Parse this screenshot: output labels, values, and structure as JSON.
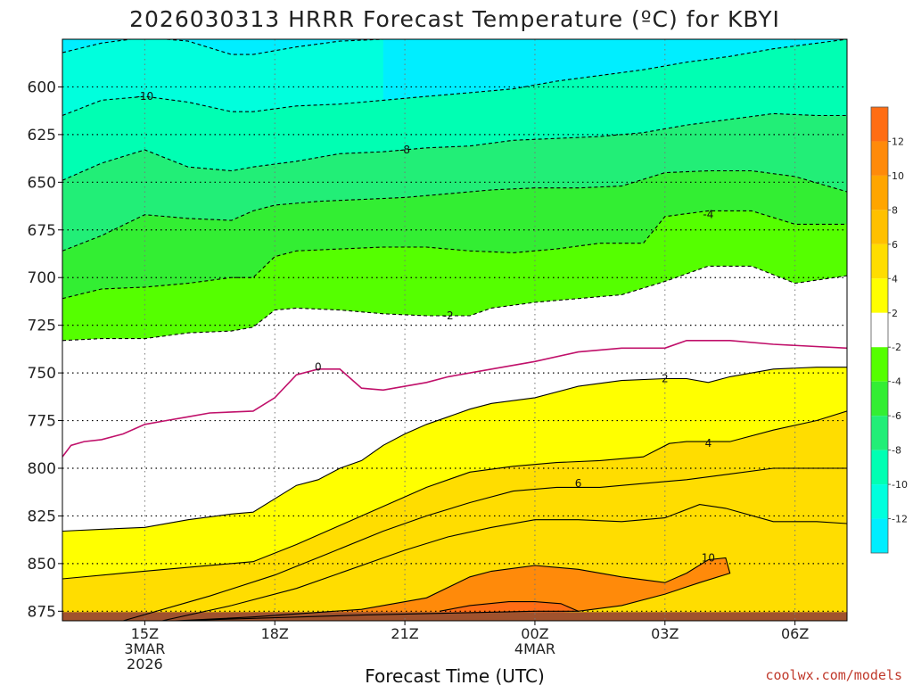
{
  "chart_data": {
    "type": "contour",
    "title": "2026030313 HRRR Forecast Temperature (ºC) for KBYI",
    "xlabel": "Forecast Time (UTC)",
    "ylabel": "",
    "credit": "coolwx.com/models",
    "x_unit": "hours after 2026030313 UTC",
    "xlim": [
      13.1,
      31.2
    ],
    "ylim": [
      880,
      575
    ],
    "x_ticks": [
      {
        "x": 15,
        "lines": [
          "15Z",
          "3MAR",
          "2026"
        ]
      },
      {
        "x": 18,
        "lines": [
          "18Z"
        ]
      },
      {
        "x": 21,
        "lines": [
          "21Z"
        ]
      },
      {
        "x": 24,
        "lines": [
          "00Z",
          "4MAR"
        ]
      },
      {
        "x": 27,
        "lines": [
          "03Z"
        ]
      },
      {
        "x": 30,
        "lines": [
          "06Z"
        ]
      }
    ],
    "y_ticks": [
      600,
      625,
      650,
      675,
      700,
      725,
      750,
      775,
      800,
      825,
      850,
      875
    ],
    "grid": true,
    "surface_pressure": 875,
    "colorbar": {
      "ticks": [
        "12",
        "10",
        "8",
        "6",
        "4",
        "2",
        "-2",
        "-4",
        "-6",
        "-8",
        "-10",
        "-12"
      ],
      "bands": [
        {
          "lo": 12,
          "hi": 14,
          "color": "#FF6D14"
        },
        {
          "lo": 10,
          "hi": 12,
          "color": "#FF8A0A"
        },
        {
          "lo": 8,
          "hi": 10,
          "color": "#FFA500"
        },
        {
          "lo": 6,
          "hi": 8,
          "color": "#FFC000"
        },
        {
          "lo": 4,
          "hi": 6,
          "color": "#FFDD00"
        },
        {
          "lo": 2,
          "hi": 4,
          "color": "#FFFF00"
        },
        {
          "lo": -2,
          "hi": 2,
          "color": "#FFFFFF"
        },
        {
          "lo": -4,
          "hi": -2,
          "color": "#55FF00"
        },
        {
          "lo": -6,
          "hi": -4,
          "color": "#33EE33"
        },
        {
          "lo": -8,
          "hi": -6,
          "color": "#22EE77"
        },
        {
          "lo": -10,
          "hi": -8,
          "color": "#00FFB3"
        },
        {
          "lo": -12,
          "hi": -10,
          "color": "#00FFDD"
        },
        {
          "lo": -14,
          "hi": -12,
          "color": "#00EEFF"
        }
      ]
    },
    "contours": [
      {
        "temp": 12,
        "label": "",
        "points": [
          [
            21.8,
            875
          ],
          [
            22.5,
            872
          ],
          [
            23.4,
            870
          ],
          [
            24,
            870
          ],
          [
            24.6,
            871
          ],
          [
            25,
            875
          ]
        ]
      },
      {
        "temp": 10,
        "label": "10",
        "label_at": [
          28.0,
          847
        ],
        "points": [
          [
            15.7,
            880
          ],
          [
            17.5,
            878
          ],
          [
            20,
            874
          ],
          [
            21.5,
            868
          ],
          [
            22.5,
            857
          ],
          [
            23,
            854
          ],
          [
            24,
            851
          ],
          [
            25,
            853
          ],
          [
            26,
            857
          ],
          [
            27,
            860
          ],
          [
            27.5,
            855
          ],
          [
            28,
            848
          ],
          [
            28.4,
            847
          ],
          [
            28.5,
            855
          ],
          [
            27.8,
            860
          ],
          [
            27,
            866
          ],
          [
            26,
            872
          ],
          [
            25,
            875
          ],
          [
            24,
            875
          ],
          [
            20,
            877
          ],
          [
            15.7,
            880
          ]
        ]
      },
      {
        "temp": 8,
        "label": "",
        "points": [
          [
            15.4,
            880
          ],
          [
            17,
            872
          ],
          [
            18.5,
            863
          ],
          [
            20,
            851
          ],
          [
            21,
            843
          ],
          [
            22,
            836
          ],
          [
            23,
            831
          ],
          [
            24,
            827
          ],
          [
            25,
            827
          ],
          [
            26,
            828
          ],
          [
            27,
            826
          ],
          [
            27.8,
            819
          ],
          [
            28.4,
            821
          ],
          [
            29.5,
            828
          ],
          [
            30.5,
            828
          ],
          [
            31.2,
            829
          ]
        ]
      },
      {
        "temp": 6,
        "label": "6",
        "label_at": [
          25,
          808
        ],
        "points": [
          [
            14.5,
            880
          ],
          [
            16.5,
            867
          ],
          [
            18,
            856
          ],
          [
            19.2,
            845
          ],
          [
            20.5,
            833
          ],
          [
            21.5,
            825
          ],
          [
            22.5,
            818
          ],
          [
            23.5,
            812
          ],
          [
            24.5,
            810
          ],
          [
            25.5,
            810
          ],
          [
            26.5,
            808
          ],
          [
            27.5,
            806
          ],
          [
            28.5,
            803
          ],
          [
            29.5,
            800
          ],
          [
            31.2,
            800
          ]
        ]
      },
      {
        "temp": 4,
        "label": "4",
        "label_at": [
          28.0,
          787
        ],
        "points": [
          [
            13.1,
            858
          ],
          [
            14.5,
            855
          ],
          [
            16,
            852
          ],
          [
            17.5,
            849
          ],
          [
            18.5,
            840
          ],
          [
            19.5,
            830
          ],
          [
            20.5,
            820
          ],
          [
            21.5,
            810
          ],
          [
            22.5,
            802
          ],
          [
            23.5,
            799
          ],
          [
            24.5,
            797
          ],
          [
            25.5,
            796
          ],
          [
            26.5,
            794
          ],
          [
            27.1,
            787
          ],
          [
            27.5,
            786
          ],
          [
            28.5,
            786
          ],
          [
            29.5,
            780
          ],
          [
            30.5,
            775
          ],
          [
            31.2,
            770
          ]
        ]
      },
      {
        "temp": 2,
        "label": "2",
        "label_at": [
          27.0,
          753
        ],
        "points": [
          [
            13.1,
            833
          ],
          [
            14,
            832
          ],
          [
            15,
            831
          ],
          [
            16,
            827
          ],
          [
            17,
            824
          ],
          [
            17.5,
            823
          ],
          [
            18,
            816
          ],
          [
            18.5,
            809
          ],
          [
            19,
            806
          ],
          [
            19.5,
            800
          ],
          [
            20,
            796
          ],
          [
            20.5,
            788
          ],
          [
            21,
            782
          ],
          [
            21.5,
            777
          ],
          [
            22,
            773
          ],
          [
            22.5,
            769
          ],
          [
            23,
            766
          ],
          [
            24,
            763
          ],
          [
            25,
            757
          ],
          [
            26,
            754
          ],
          [
            27,
            753
          ],
          [
            27.5,
            753
          ],
          [
            28,
            755
          ],
          [
            28.5,
            752
          ],
          [
            29.5,
            748
          ],
          [
            30.5,
            747
          ],
          [
            31.2,
            747
          ]
        ]
      },
      {
        "temp": 0,
        "label": "0",
        "label_at": [
          19.0,
          747
        ],
        "points": [
          [
            13.1,
            794
          ],
          [
            13.3,
            788
          ],
          [
            13.6,
            786
          ],
          [
            14,
            785
          ],
          [
            14.5,
            782
          ],
          [
            15,
            777
          ],
          [
            15.5,
            775
          ],
          [
            16,
            773
          ],
          [
            16.5,
            771
          ],
          [
            17.5,
            770
          ],
          [
            18,
            763
          ],
          [
            18.5,
            751
          ],
          [
            19,
            748
          ],
          [
            19.5,
            748
          ],
          [
            20,
            758
          ],
          [
            20.5,
            759
          ],
          [
            21,
            757
          ],
          [
            21.5,
            755
          ],
          [
            22,
            752
          ],
          [
            23,
            748
          ],
          [
            24,
            744
          ],
          [
            25,
            739
          ],
          [
            26,
            737
          ],
          [
            27,
            737
          ],
          [
            27.5,
            733
          ],
          [
            28,
            733
          ],
          [
            28.5,
            733
          ],
          [
            29.5,
            735
          ],
          [
            31.2,
            737
          ]
        ]
      },
      {
        "temp": -2,
        "label": "-2",
        "label_at": [
          22.0,
          720
        ],
        "points": [
          [
            13.1,
            733
          ],
          [
            14,
            732
          ],
          [
            15,
            732
          ],
          [
            16,
            729
          ],
          [
            17,
            728
          ],
          [
            17.5,
            726
          ],
          [
            18,
            717
          ],
          [
            18.5,
            716
          ],
          [
            19.5,
            717
          ],
          [
            20.5,
            719
          ],
          [
            21.5,
            720
          ],
          [
            22,
            720
          ],
          [
            22.5,
            720
          ],
          [
            23,
            716
          ],
          [
            24,
            713
          ],
          [
            25,
            711
          ],
          [
            26,
            709
          ],
          [
            27,
            702
          ],
          [
            28,
            694
          ],
          [
            29,
            694
          ],
          [
            30,
            703
          ],
          [
            31.2,
            699
          ]
        ]
      },
      {
        "temp": -4,
        "label": "-4",
        "label_at": [
          28.0,
          667
        ],
        "points": [
          [
            13.1,
            711
          ],
          [
            14,
            706
          ],
          [
            15,
            705
          ],
          [
            16,
            703
          ],
          [
            17,
            700
          ],
          [
            17.5,
            700
          ],
          [
            18,
            689
          ],
          [
            18.5,
            686
          ],
          [
            19.5,
            685
          ],
          [
            20.5,
            684
          ],
          [
            21.5,
            684
          ],
          [
            22.5,
            686
          ],
          [
            23.5,
            687
          ],
          [
            24.5,
            685
          ],
          [
            25.5,
            682
          ],
          [
            26.5,
            682
          ],
          [
            27,
            668
          ],
          [
            28,
            665
          ],
          [
            29,
            665
          ],
          [
            30,
            672
          ],
          [
            31.2,
            672
          ]
        ]
      },
      {
        "temp": -6,
        "label": "",
        "points": [
          [
            13.1,
            686
          ],
          [
            14,
            678
          ],
          [
            15,
            667
          ],
          [
            16,
            669
          ],
          [
            17,
            670
          ],
          [
            17.5,
            665
          ],
          [
            18,
            662
          ],
          [
            19,
            660
          ],
          [
            20,
            659
          ],
          [
            21,
            658
          ],
          [
            22,
            656
          ],
          [
            23,
            654
          ],
          [
            24,
            653
          ],
          [
            25,
            653
          ],
          [
            26,
            652
          ],
          [
            27,
            645
          ],
          [
            28,
            644
          ],
          [
            29,
            644
          ],
          [
            30,
            647
          ],
          [
            31.2,
            655
          ]
        ]
      },
      {
        "temp": -8,
        "label": "-8",
        "label_at": [
          21.0,
          633
        ],
        "points": [
          [
            13.1,
            649
          ],
          [
            14,
            640
          ],
          [
            15,
            633
          ],
          [
            16,
            642
          ],
          [
            17,
            644
          ],
          [
            17.5,
            642
          ],
          [
            18.5,
            639
          ],
          [
            19.5,
            635
          ],
          [
            20.5,
            634
          ],
          [
            21,
            633
          ],
          [
            21.5,
            632
          ],
          [
            22.5,
            631
          ],
          [
            23.5,
            628
          ],
          [
            24.5,
            627
          ],
          [
            25.5,
            626
          ],
          [
            26.5,
            624
          ],
          [
            27.5,
            620
          ],
          [
            28.5,
            617
          ],
          [
            29.5,
            614
          ],
          [
            30.5,
            615
          ],
          [
            31.2,
            615
          ]
        ]
      },
      {
        "temp": -10,
        "label": "-10",
        "label_at": [
          15.0,
          605
        ],
        "points": [
          [
            13.1,
            615
          ],
          [
            14,
            607
          ],
          [
            15,
            605
          ],
          [
            16,
            608
          ],
          [
            17,
            613
          ],
          [
            17.5,
            613
          ],
          [
            18.5,
            610
          ],
          [
            19.5,
            609
          ],
          [
            20.5,
            607
          ],
          [
            21.5,
            605
          ],
          [
            22.5,
            603
          ],
          [
            23.5,
            601
          ],
          [
            24.5,
            597
          ],
          [
            25.5,
            594
          ],
          [
            26.5,
            591
          ],
          [
            27.5,
            587
          ],
          [
            28.5,
            584
          ],
          [
            29.5,
            580
          ],
          [
            31.2,
            575
          ]
        ]
      },
      {
        "temp": -12,
        "label": "",
        "points": [
          [
            13.1,
            582
          ],
          [
            14,
            577
          ],
          [
            15,
            574
          ],
          [
            16,
            576
          ],
          [
            17,
            583
          ],
          [
            17.5,
            583
          ],
          [
            18.5,
            579
          ],
          [
            19.5,
            576
          ],
          [
            20.5,
            575
          ]
        ]
      }
    ]
  }
}
